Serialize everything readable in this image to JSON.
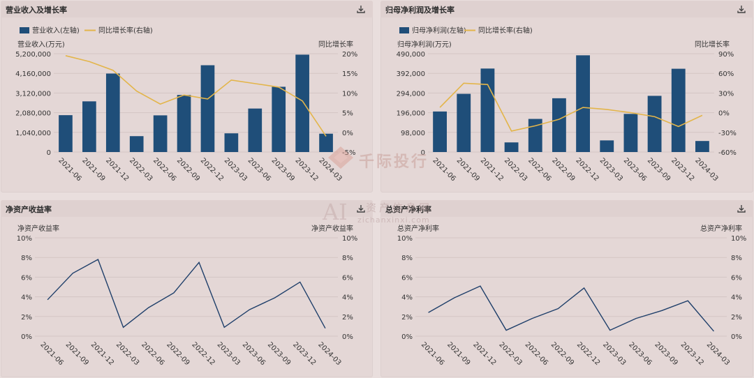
{
  "panels": [
    {
      "title": "营业收入及增长率"
    },
    {
      "title": "归母净利润及增长率"
    },
    {
      "title": "净资产收益率"
    },
    {
      "title": "总资产净利率"
    }
  ],
  "icons": {
    "download": "download-icon"
  },
  "colors": {
    "bar": "#1f4e79",
    "growth_line": "#e3b54a",
    "ratio_line": "#1f3f6a"
  },
  "watermark": {
    "logo1": "千际投行",
    "logo2_ai": "AI",
    "logo2_cn": "资产信息网",
    "logo2_en": "zichanxinxi.com"
  },
  "chart_data": [
    {
      "type": "bar",
      "title": "营业收入及增长率",
      "categories": [
        "2021-06",
        "2021-09",
        "2021-12",
        "2022-03",
        "2022-06",
        "2022-09",
        "2022-12",
        "2023-03",
        "2023-06",
        "2023-09",
        "2023-12",
        "2024-03"
      ],
      "legend": [
        "营业收入(左轴)",
        "同比增长率(右轴)"
      ],
      "left_axis_label": "营业收入(万元)",
      "right_axis_label": "同比增长率",
      "left_ticks": [
        "0",
        "1,040,000",
        "2,080,000",
        "3,120,000",
        "4,160,000",
        "5,200,000"
      ],
      "right_ticks": [
        "-5%",
        "0%",
        "5%",
        "10%",
        "15%",
        "20%"
      ],
      "ylim_left": [
        0,
        5200000
      ],
      "ylim_right": [
        -5,
        20
      ],
      "series": [
        {
          "name": "营业收入(左轴)",
          "type": "bar",
          "values": [
            1950000,
            2680000,
            4150000,
            840000,
            1940000,
            3020000,
            4590000,
            990000,
            2300000,
            3450000,
            5150000,
            970000
          ]
        },
        {
          "name": "同比增长率(右轴)",
          "type": "line",
          "values": [
            19.5,
            18.0,
            15.8,
            10.5,
            7.2,
            9.5,
            8.5,
            13.3,
            12.4,
            11.5,
            8.0,
            -1.0
          ]
        }
      ]
    },
    {
      "type": "bar",
      "title": "归母净利润及增长率",
      "categories": [
        "2021-06",
        "2021-09",
        "2021-12",
        "2022-03",
        "2022-06",
        "2022-09",
        "2022-12",
        "2023-03",
        "2023-06",
        "2023-09",
        "2023-12",
        "2024-03"
      ],
      "legend": [
        "归母净利润(左轴)",
        "同比增长率(右轴)"
      ],
      "left_axis_label": "归母净利润(万元)",
      "right_axis_label": "同比增长率",
      "left_ticks": [
        "0",
        "98,000",
        "196,000",
        "294,000",
        "392,000",
        "490,000"
      ],
      "right_ticks": [
        "-60%",
        "-30%",
        "0%",
        "30%",
        "60%",
        "90%"
      ],
      "ylim_left": [
        0,
        490000
      ],
      "ylim_right": [
        -60,
        90
      ],
      "series": [
        {
          "name": "归母净利润(左轴)",
          "type": "bar",
          "values": [
            202000,
            290000,
            416000,
            48000,
            165000,
            268000,
            482000,
            58000,
            190000,
            280000,
            415000,
            55000
          ]
        },
        {
          "name": "同比增长率(右轴)",
          "type": "line",
          "values": [
            8,
            45,
            43,
            -28,
            -20,
            -10,
            8,
            5,
            0,
            -6,
            -21,
            -4
          ]
        }
      ]
    },
    {
      "type": "line",
      "title": "净资产收益率",
      "categories": [
        "2021-06",
        "2021-09",
        "2021-12",
        "2022-03",
        "2022-06",
        "2022-09",
        "2022-12",
        "2023-03",
        "2023-06",
        "2023-09",
        "2023-12",
        "2024-03"
      ],
      "left_axis_label": "净资产收益率",
      "right_axis_label": "净资产收益率",
      "left_ticks": [
        "0%",
        "2%",
        "4%",
        "6%",
        "8%",
        "10%"
      ],
      "right_ticks": [
        "0%",
        "2%",
        "4%",
        "6%",
        "8%",
        "10%"
      ],
      "ylim": [
        0,
        10
      ],
      "series": [
        {
          "values": [
            3.7,
            6.4,
            7.8,
            0.9,
            2.9,
            4.4,
            7.5,
            0.9,
            2.7,
            3.9,
            5.5,
            0.8
          ]
        }
      ]
    },
    {
      "type": "line",
      "title": "总资产净利率",
      "categories": [
        "2021-06",
        "2021-09",
        "2021-12",
        "2022-03",
        "2022-06",
        "2022-09",
        "2022-12",
        "2023-03",
        "2023-06",
        "2023-09",
        "2023-12",
        "2024-03"
      ],
      "left_axis_label": "总资产净利率",
      "right_axis_label": "总资产净利率",
      "left_ticks": [
        "0%",
        "2%",
        "4%",
        "6%",
        "8%",
        "10%"
      ],
      "right_ticks": [
        "0%",
        "2%",
        "4%",
        "6%",
        "8%",
        "10%"
      ],
      "ylim": [
        0,
        10
      ],
      "series": [
        {
          "values": [
            2.4,
            3.9,
            5.1,
            0.6,
            1.8,
            2.8,
            4.9,
            0.6,
            1.8,
            2.6,
            3.6,
            0.5
          ]
        }
      ]
    }
  ]
}
